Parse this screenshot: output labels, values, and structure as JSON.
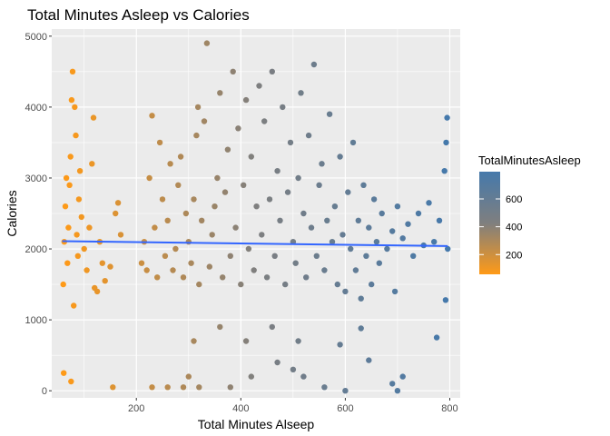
{
  "chart_data": {
    "type": "scatter",
    "title": "Total Minutes Asleep vs Calories",
    "xlabel": "Total Minutes Alseep",
    "ylabel": "Calories",
    "xlim": [
      38,
      820
    ],
    "ylim": [
      -100,
      5100
    ],
    "x_ticks": [
      200,
      400,
      600,
      800
    ],
    "y_ticks": [
      0,
      1000,
      2000,
      3000,
      4000,
      5000
    ],
    "grid": true,
    "legend": {
      "title": "TotalMinutesAsleep",
      "placement": "right",
      "ticks": [
        200,
        400,
        600
      ],
      "range": [
        58,
        796
      ],
      "low_color": "#ff9a17",
      "mid_color": "#7f7f7f",
      "high_color": "#4579ab"
    },
    "trend_line": {
      "type": "linear",
      "color": "#3366ff",
      "x": [
        58,
        796
      ],
      "y": [
        2110,
        2040
      ]
    },
    "points": [
      [
        60,
        1500
      ],
      [
        62,
        2100
      ],
      [
        64,
        2600
      ],
      [
        66,
        3000
      ],
      [
        68,
        1800
      ],
      [
        70,
        2300
      ],
      [
        72,
        2900
      ],
      [
        74,
        3300
      ],
      [
        76,
        4100
      ],
      [
        78,
        4500
      ],
      [
        80,
        1200
      ],
      [
        82,
        4000
      ],
      [
        84,
        3600
      ],
      [
        86,
        2200
      ],
      [
        88,
        1900
      ],
      [
        90,
        2700
      ],
      [
        61,
        250
      ],
      [
        75,
        130
      ],
      [
        92,
        3100
      ],
      [
        95,
        2450
      ],
      [
        100,
        2000
      ],
      [
        105,
        1700
      ],
      [
        110,
        2300
      ],
      [
        115,
        3200
      ],
      [
        118,
        3850
      ],
      [
        120,
        1450
      ],
      [
        125,
        1400
      ],
      [
        130,
        2100
      ],
      [
        135,
        1800
      ],
      [
        140,
        1550
      ],
      [
        150,
        1750
      ],
      [
        155,
        50
      ],
      [
        160,
        2500
      ],
      [
        165,
        2650
      ],
      [
        170,
        2200
      ],
      [
        210,
        1800
      ],
      [
        215,
        2100
      ],
      [
        220,
        1700
      ],
      [
        225,
        3000
      ],
      [
        230,
        3880
      ],
      [
        235,
        2300
      ],
      [
        240,
        1600
      ],
      [
        245,
        3500
      ],
      [
        250,
        2700
      ],
      [
        255,
        1900
      ],
      [
        260,
        2400
      ],
      [
        265,
        3200
      ],
      [
        270,
        1700
      ],
      [
        275,
        2000
      ],
      [
        280,
        2900
      ],
      [
        285,
        3300
      ],
      [
        290,
        1600
      ],
      [
        295,
        2500
      ],
      [
        300,
        2100
      ],
      [
        305,
        1800
      ],
      [
        310,
        2700
      ],
      [
        315,
        3600
      ],
      [
        318,
        4000
      ],
      [
        320,
        1500
      ],
      [
        325,
        2400
      ],
      [
        330,
        3800
      ],
      [
        335,
        4900
      ],
      [
        340,
        1750
      ],
      [
        345,
        2200
      ],
      [
        350,
        2600
      ],
      [
        355,
        3000
      ],
      [
        360,
        4200
      ],
      [
        365,
        1600
      ],
      [
        370,
        2800
      ],
      [
        375,
        3400
      ],
      [
        380,
        1900
      ],
      [
        385,
        4500
      ],
      [
        390,
        2300
      ],
      [
        395,
        3700
      ],
      [
        400,
        1500
      ],
      [
        405,
        2900
      ],
      [
        410,
        4100
      ],
      [
        415,
        2000
      ],
      [
        420,
        3300
      ],
      [
        425,
        1700
      ],
      [
        430,
        2600
      ],
      [
        435,
        4300
      ],
      [
        440,
        2200
      ],
      [
        445,
        3800
      ],
      [
        450,
        1600
      ],
      [
        455,
        2700
      ],
      [
        460,
        4500
      ],
      [
        465,
        1900
      ],
      [
        470,
        3100
      ],
      [
        475,
        2400
      ],
      [
        480,
        4000
      ],
      [
        485,
        1500
      ],
      [
        490,
        2800
      ],
      [
        495,
        3500
      ],
      [
        500,
        2100
      ],
      [
        505,
        1800
      ],
      [
        510,
        3000
      ],
      [
        515,
        4200
      ],
      [
        520,
        2500
      ],
      [
        525,
        1600
      ],
      [
        530,
        3600
      ],
      [
        535,
        2300
      ],
      [
        540,
        4600
      ],
      [
        545,
        1900
      ],
      [
        550,
        2900
      ],
      [
        555,
        3200
      ],
      [
        560,
        1700
      ],
      [
        565,
        2400
      ],
      [
        570,
        3900
      ],
      [
        575,
        2100
      ],
      [
        580,
        2600
      ],
      [
        585,
        1500
      ],
      [
        590,
        3300
      ],
      [
        595,
        2200
      ],
      [
        600,
        1400
      ],
      [
        605,
        2800
      ],
      [
        610,
        2000
      ],
      [
        615,
        3500
      ],
      [
        620,
        1700
      ],
      [
        625,
        2400
      ],
      [
        630,
        1300
      ],
      [
        635,
        2900
      ],
      [
        640,
        1900
      ],
      [
        645,
        2300
      ],
      [
        650,
        1500
      ],
      [
        655,
        2700
      ],
      [
        660,
        2100
      ],
      [
        665,
        1800
      ],
      [
        670,
        2500
      ],
      [
        680,
        2000
      ],
      [
        690,
        2250
      ],
      [
        695,
        1400
      ],
      [
        700,
        2600
      ],
      [
        710,
        2150
      ],
      [
        720,
        2350
      ],
      [
        730,
        1900
      ],
      [
        740,
        2500
      ],
      [
        750,
        2050
      ],
      [
        760,
        2650
      ],
      [
        770,
        2100
      ],
      [
        780,
        2400
      ],
      [
        790,
        3100
      ],
      [
        793,
        3500
      ],
      [
        795,
        3850
      ],
      [
        796,
        2000
      ],
      [
        792,
        1280
      ],
      [
        775,
        750
      ],
      [
        700,
        0
      ],
      [
        710,
        200
      ],
      [
        690,
        100
      ],
      [
        230,
        50
      ],
      [
        260,
        50
      ],
      [
        290,
        50
      ],
      [
        320,
        50
      ],
      [
        380,
        50
      ],
      [
        420,
        200
      ],
      [
        470,
        400
      ],
      [
        520,
        200
      ],
      [
        560,
        50
      ],
      [
        600,
        0
      ],
      [
        310,
        700
      ],
      [
        360,
        900
      ],
      [
        410,
        700
      ],
      [
        460,
        900
      ],
      [
        510,
        700
      ],
      [
        590,
        650
      ],
      [
        630,
        880
      ],
      [
        645,
        430
      ],
      [
        300,
        200
      ],
      [
        500,
        300
      ]
    ]
  }
}
